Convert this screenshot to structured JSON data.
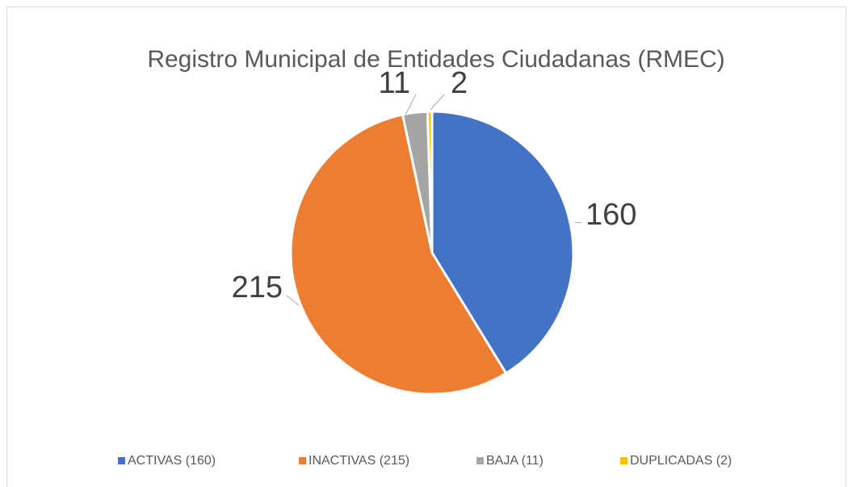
{
  "chart_data": {
    "type": "pie",
    "title": "Registro Municipal de Entidades Ciudadanas (RMEC)",
    "categories": [
      "ACTIVAS (160)",
      "INACTIVAS (215)",
      "BAJA (11)",
      "DUPLICADAS (2)"
    ],
    "values": [
      160,
      215,
      11,
      2
    ],
    "colors": [
      "#4472c4",
      "#ed7d31",
      "#a5a5a5",
      "#ffc000"
    ],
    "legend": "bottom"
  }
}
